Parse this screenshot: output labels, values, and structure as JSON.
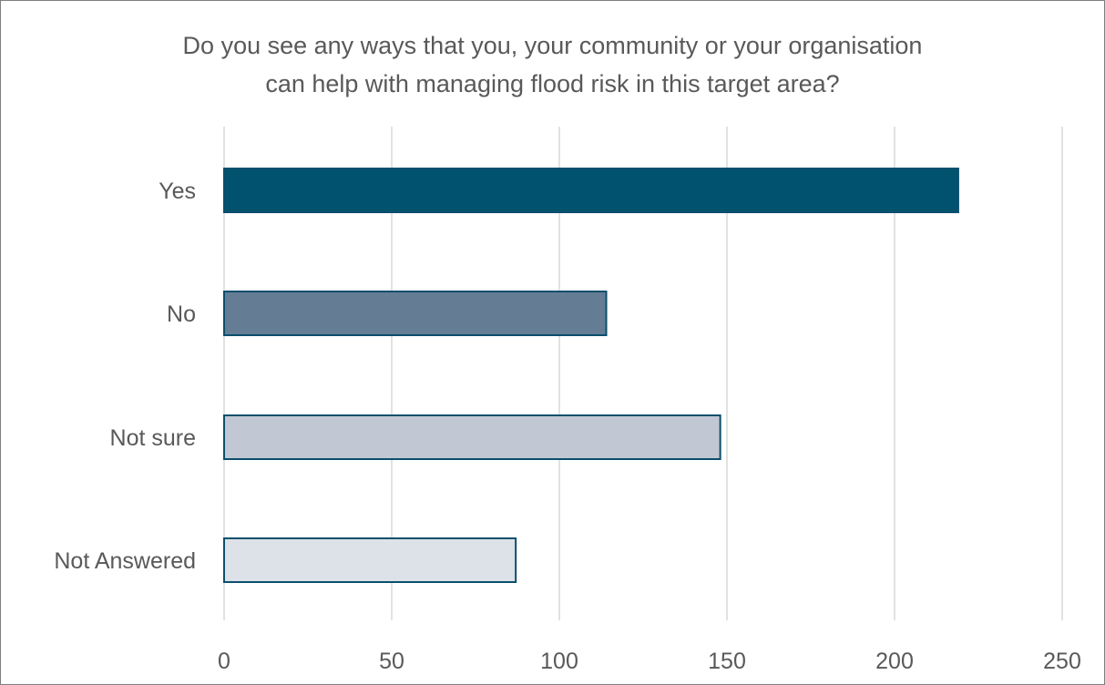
{
  "chart_data": {
    "type": "bar",
    "orientation": "horizontal",
    "title_lines": [
      "Do you see any ways that you, your community or your organisation",
      "can help with managing flood risk in this target area?"
    ],
    "categories": [
      "Yes",
      "No",
      "Not sure",
      "Not Answered"
    ],
    "values": [
      219,
      114,
      148,
      87
    ],
    "bar_colors": [
      "#00526E",
      "#647D95",
      "#C1C8D3",
      "#DDE1E8"
    ],
    "bar_border_color": "#0B4F6C",
    "xlim": [
      0,
      250
    ],
    "x_ticks": [
      0,
      50,
      100,
      150,
      200,
      250
    ],
    "grid": true,
    "legend": "none"
  }
}
